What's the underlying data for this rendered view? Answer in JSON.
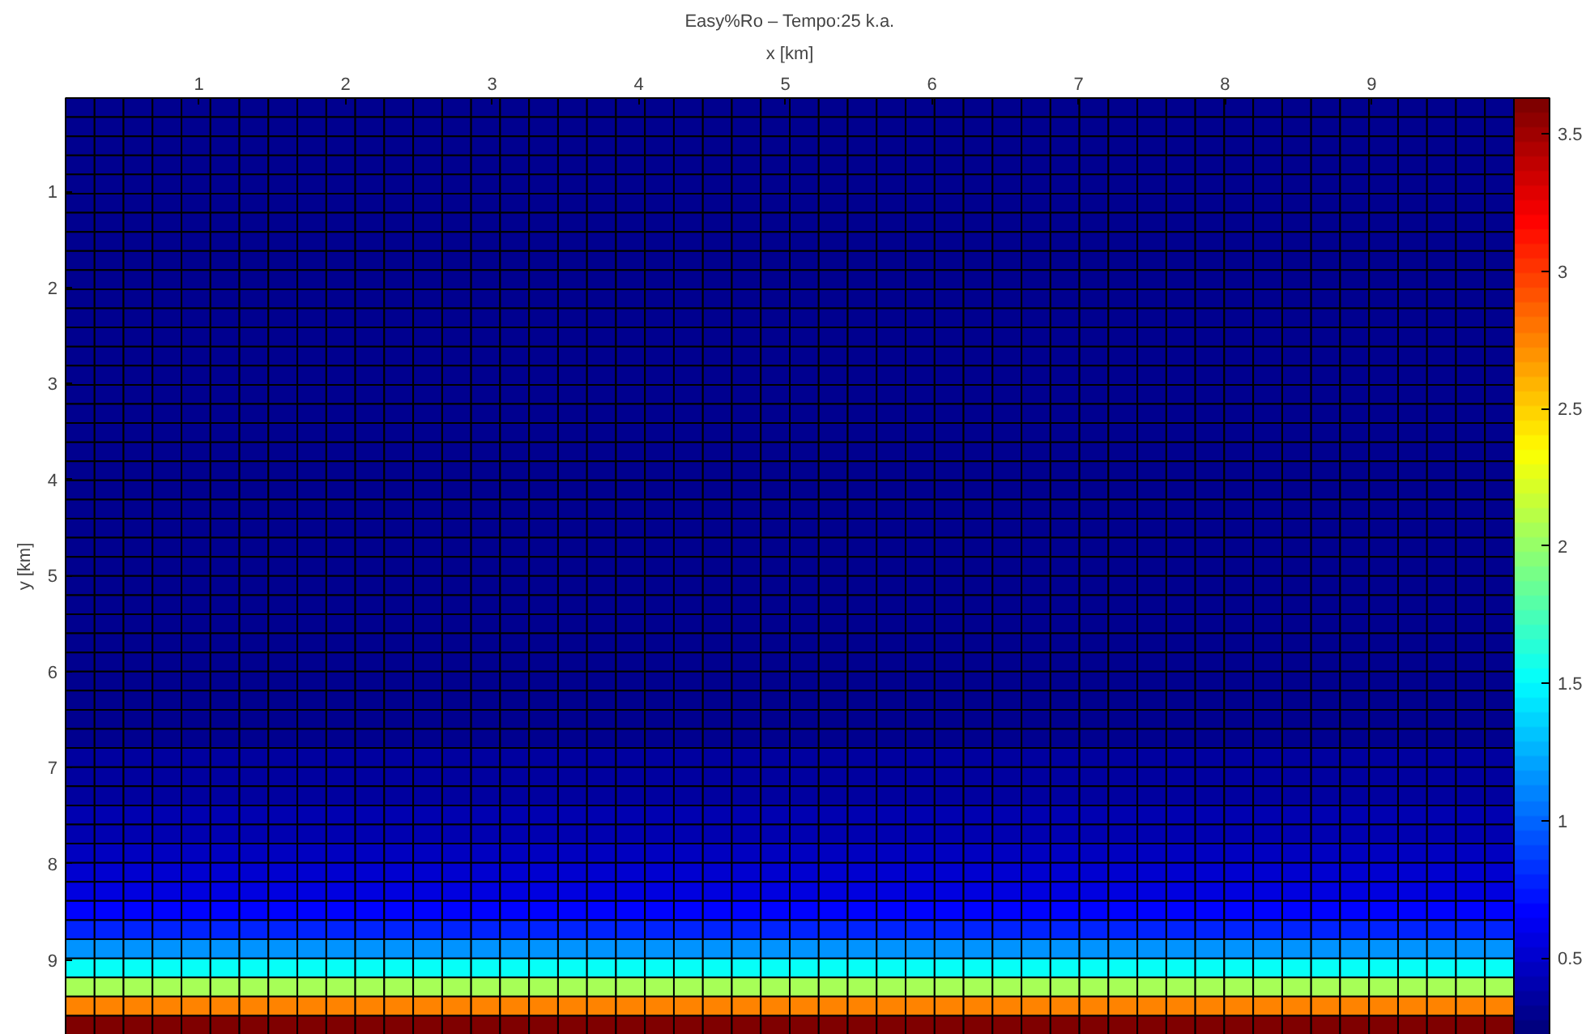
{
  "chart_data": {
    "type": "heatmap",
    "title": "Easy%Ro – Tempo:25 k.a.",
    "xlabel": "x [km]",
    "ylabel": "y [km]",
    "xlim": [
      0.09,
      9.97
    ],
    "ylim": [
      9.78,
      0.03
    ],
    "xticks": [
      1,
      2,
      3,
      4,
      5,
      6,
      7,
      8,
      9
    ],
    "yticks": [
      1,
      2,
      3,
      4,
      5,
      6,
      7,
      8,
      9
    ],
    "clim": [
      0.22,
      3.63
    ],
    "cticks": [
      0.5,
      1,
      1.5,
      2,
      2.5,
      3,
      3.5
    ],
    "cells": [
      [
        0.28,
        0.28,
        0.28,
        0.28,
        0.28,
        0.28,
        0.28,
        0.28,
        0.28,
        0.28,
        0.28,
        0.28,
        0.28,
        0.28,
        0.28,
        0.28,
        0.28,
        0.28,
        0.28,
        0.28,
        0.28,
        0.28,
        0.28,
        0.28,
        0.28,
        0.28,
        0.28,
        0.28,
        0.28,
        0.28,
        0.28,
        0.28,
        0.28,
        0.28,
        0.28,
        0.28,
        0.28,
        0.28,
        0.28,
        0.28,
        0.28,
        0.28,
        0.28,
        0.28,
        0.28,
        0.28,
        0.28,
        0.28,
        0.28,
        0.28
      ],
      [
        0.28,
        0.28,
        0.28,
        0.28,
        0.28,
        0.28,
        0.28,
        0.28,
        0.28,
        0.28,
        0.28,
        0.28,
        0.28,
        0.28,
        0.28,
        0.28,
        0.28,
        0.28,
        0.28,
        0.28,
        0.28,
        0.28,
        0.28,
        0.28,
        0.28,
        0.28,
        0.28,
        0.28,
        0.28,
        0.28,
        0.28,
        0.28,
        0.28,
        0.28,
        0.28,
        0.28,
        0.28,
        0.28,
        0.28,
        0.28,
        0.28,
        0.28,
        0.28,
        0.28,
        0.28,
        0.28,
        0.28,
        0.28,
        0.28,
        0.28
      ],
      [
        0.28,
        0.28,
        0.28,
        0.28,
        0.28,
        0.28,
        0.28,
        0.28,
        0.28,
        0.28,
        0.28,
        0.28,
        0.28,
        0.28,
        0.28,
        0.28,
        0.28,
        0.28,
        0.28,
        0.28,
        0.28,
        0.28,
        0.28,
        0.28,
        0.28,
        0.28,
        0.28,
        0.28,
        0.28,
        0.28,
        0.28,
        0.28,
        0.28,
        0.28,
        0.28,
        0.28,
        0.28,
        0.28,
        0.28,
        0.28,
        0.28,
        0.28,
        0.28,
        0.28,
        0.28,
        0.28,
        0.28,
        0.28,
        0.28,
        0.28
      ],
      [
        0.28,
        0.28,
        0.28,
        0.28,
        0.28,
        0.28,
        0.28,
        0.28,
        0.28,
        0.28,
        0.28,
        0.28,
        0.28,
        0.28,
        0.28,
        0.28,
        0.28,
        0.28,
        0.28,
        0.28,
        0.28,
        0.28,
        0.28,
        0.28,
        0.28,
        0.28,
        0.28,
        0.28,
        0.28,
        0.28,
        0.28,
        0.28,
        0.28,
        0.28,
        0.28,
        0.28,
        0.28,
        0.28,
        0.28,
        0.28,
        0.28,
        0.28,
        0.28,
        0.28,
        0.28,
        0.28,
        0.28,
        0.28,
        0.28,
        0.28
      ],
      [
        0.28,
        0.28,
        0.28,
        0.28,
        0.28,
        0.28,
        0.28,
        0.28,
        0.28,
        0.28,
        0.28,
        0.28,
        0.28,
        0.28,
        0.28,
        0.28,
        0.28,
        0.28,
        0.28,
        0.28,
        0.28,
        0.28,
        0.28,
        0.28,
        0.28,
        0.28,
        0.28,
        0.28,
        0.28,
        0.28,
        0.28,
        0.28,
        0.28,
        0.28,
        0.28,
        0.28,
        0.28,
        0.28,
        0.28,
        0.28,
        0.28,
        0.28,
        0.28,
        0.28,
        0.28,
        0.28,
        0.28,
        0.28,
        0.28,
        0.28
      ],
      [
        0.28,
        0.28,
        0.28,
        0.28,
        0.28,
        0.28,
        0.28,
        0.28,
        0.28,
        0.28,
        0.28,
        0.28,
        0.28,
        0.28,
        0.28,
        0.28,
        0.28,
        0.28,
        0.28,
        0.28,
        0.28,
        0.28,
        0.28,
        0.28,
        0.28,
        0.28,
        0.28,
        0.28,
        0.28,
        0.28,
        0.28,
        0.28,
        0.28,
        0.28,
        0.28,
        0.28,
        0.28,
        0.28,
        0.28,
        0.28,
        0.28,
        0.28,
        0.28,
        0.28,
        0.28,
        0.28,
        0.28,
        0.28,
        0.28,
        0.28
      ],
      [
        0.28,
        0.28,
        0.28,
        0.28,
        0.28,
        0.28,
        0.28,
        0.28,
        0.28,
        0.28,
        0.28,
        0.28,
        0.28,
        0.28,
        0.28,
        0.28,
        0.28,
        0.28,
        0.28,
        0.28,
        0.28,
        0.28,
        0.28,
        0.28,
        0.28,
        0.28,
        0.28,
        0.28,
        0.28,
        0.28,
        0.28,
        0.28,
        0.28,
        0.28,
        0.28,
        0.28,
        0.28,
        0.28,
        0.28,
        0.28,
        0.28,
        0.28,
        0.28,
        0.28,
        0.28,
        0.28,
        0.28,
        0.28,
        0.28,
        0.28
      ],
      [
        0.28,
        0.28,
        0.28,
        0.28,
        0.28,
        0.28,
        0.28,
        0.28,
        0.28,
        0.28,
        0.28,
        0.28,
        0.28,
        0.28,
        0.28,
        0.28,
        0.28,
        0.28,
        0.28,
        0.28,
        0.28,
        0.28,
        0.28,
        0.28,
        0.28,
        0.28,
        0.28,
        0.28,
        0.28,
        0.28,
        0.28,
        0.28,
        0.28,
        0.28,
        0.28,
        0.28,
        0.28,
        0.28,
        0.28,
        0.28,
        0.28,
        0.28,
        0.28,
        0.28,
        0.28,
        0.28,
        0.28,
        0.28,
        0.28,
        0.28
      ],
      [
        0.28,
        0.28,
        0.28,
        0.28,
        0.28,
        0.28,
        0.28,
        0.28,
        0.28,
        0.28,
        0.28,
        0.28,
        0.28,
        0.28,
        0.28,
        0.28,
        0.28,
        0.28,
        0.28,
        0.28,
        0.28,
        0.28,
        0.28,
        0.28,
        0.28,
        0.28,
        0.28,
        0.28,
        0.28,
        0.28,
        0.28,
        0.28,
        0.28,
        0.28,
        0.28,
        0.28,
        0.28,
        0.28,
        0.28,
        0.28,
        0.28,
        0.28,
        0.28,
        0.28,
        0.28,
        0.28,
        0.28,
        0.28,
        0.28,
        0.28
      ],
      [
        0.28,
        0.28,
        0.28,
        0.28,
        0.28,
        0.28,
        0.28,
        0.28,
        0.28,
        0.28,
        0.28,
        0.28,
        0.28,
        0.28,
        0.28,
        0.28,
        0.28,
        0.28,
        0.28,
        0.28,
        0.28,
        0.28,
        0.28,
        0.28,
        0.28,
        0.28,
        0.28,
        0.28,
        0.28,
        0.28,
        0.28,
        0.28,
        0.28,
        0.28,
        0.28,
        0.28,
        0.28,
        0.28,
        0.28,
        0.28,
        0.28,
        0.28,
        0.28,
        0.28,
        0.28,
        0.28,
        0.28,
        0.28,
        0.28,
        0.28
      ],
      [
        0.28,
        0.28,
        0.28,
        0.28,
        0.28,
        0.28,
        0.28,
        0.28,
        0.28,
        0.28,
        0.28,
        0.28,
        0.28,
        0.28,
        0.28,
        0.28,
        0.28,
        0.28,
        0.28,
        0.28,
        0.28,
        0.28,
        0.28,
        0.28,
        0.28,
        0.28,
        0.28,
        0.28,
        0.28,
        0.28,
        0.28,
        0.28,
        0.28,
        0.28,
        0.28,
        0.28,
        0.28,
        0.28,
        0.28,
        0.28,
        0.28,
        0.28,
        0.28,
        0.28,
        0.28,
        0.28,
        0.28,
        0.28,
        0.28,
        0.28
      ],
      [
        0.28,
        0.28,
        0.28,
        0.28,
        0.28,
        0.28,
        0.28,
        0.28,
        0.28,
        0.28,
        0.28,
        0.28,
        0.28,
        0.28,
        0.28,
        0.28,
        0.28,
        0.28,
        0.28,
        0.28,
        0.28,
        0.28,
        0.28,
        0.28,
        0.28,
        0.28,
        0.28,
        0.28,
        0.28,
        0.28,
        0.28,
        0.28,
        0.28,
        0.28,
        0.28,
        0.28,
        0.28,
        0.28,
        0.28,
        0.28,
        0.28,
        0.28,
        0.28,
        0.28,
        0.28,
        0.28,
        0.28,
        0.28,
        0.28,
        0.28
      ],
      [
        0.28,
        0.28,
        0.28,
        0.28,
        0.28,
        0.28,
        0.28,
        0.28,
        0.28,
        0.28,
        0.28,
        0.28,
        0.28,
        0.28,
        0.28,
        0.28,
        0.28,
        0.28,
        0.28,
        0.28,
        0.28,
        0.28,
        0.28,
        0.28,
        0.28,
        0.28,
        0.28,
        0.28,
        0.28,
        0.28,
        0.28,
        0.28,
        0.28,
        0.28,
        0.28,
        0.28,
        0.28,
        0.28,
        0.28,
        0.28,
        0.28,
        0.28,
        0.28,
        0.28,
        0.28,
        0.28,
        0.28,
        0.28,
        0.28,
        0.28
      ],
      [
        0.28,
        0.28,
        0.28,
        0.28,
        0.28,
        0.28,
        0.28,
        0.28,
        0.28,
        0.28,
        0.28,
        0.28,
        0.28,
        0.28,
        0.28,
        0.28,
        0.28,
        0.28,
        0.28,
        0.28,
        0.28,
        0.28,
        0.28,
        0.28,
        0.28,
        0.28,
        0.28,
        0.28,
        0.28,
        0.28,
        0.28,
        0.28,
        0.28,
        0.28,
        0.28,
        0.28,
        0.28,
        0.28,
        0.28,
        0.28,
        0.28,
        0.28,
        0.28,
        0.28,
        0.28,
        0.28,
        0.28,
        0.28,
        0.28,
        0.28
      ],
      [
        0.28,
        0.28,
        0.28,
        0.28,
        0.28,
        0.28,
        0.28,
        0.28,
        0.28,
        0.28,
        0.28,
        0.28,
        0.28,
        0.28,
        0.28,
        0.28,
        0.28,
        0.28,
        0.28,
        0.28,
        0.28,
        0.28,
        0.28,
        0.28,
        0.28,
        0.28,
        0.28,
        0.28,
        0.28,
        0.28,
        0.28,
        0.28,
        0.28,
        0.28,
        0.28,
        0.28,
        0.28,
        0.28,
        0.28,
        0.28,
        0.28,
        0.28,
        0.28,
        0.28,
        0.28,
        0.28,
        0.28,
        0.28,
        0.28,
        0.28
      ],
      [
        0.28,
        0.28,
        0.28,
        0.28,
        0.28,
        0.28,
        0.28,
        0.28,
        0.28,
        0.28,
        0.28,
        0.28,
        0.28,
        0.28,
        0.28,
        0.28,
        0.28,
        0.28,
        0.28,
        0.28,
        0.28,
        0.28,
        0.28,
        0.28,
        0.28,
        0.28,
        0.28,
        0.28,
        0.28,
        0.28,
        0.28,
        0.28,
        0.28,
        0.28,
        0.28,
        0.28,
        0.28,
        0.28,
        0.28,
        0.28,
        0.28,
        0.28,
        0.28,
        0.28,
        0.28,
        0.28,
        0.28,
        0.28,
        0.28,
        0.28
      ],
      [
        0.28,
        0.28,
        0.28,
        0.28,
        0.28,
        0.28,
        0.28,
        0.28,
        0.28,
        0.28,
        0.28,
        0.28,
        0.28,
        0.28,
        0.28,
        0.28,
        0.28,
        0.28,
        0.28,
        0.28,
        0.28,
        0.28,
        0.28,
        0.28,
        0.28,
        0.28,
        0.28,
        0.28,
        0.28,
        0.28,
        0.28,
        0.28,
        0.28,
        0.28,
        0.28,
        0.28,
        0.28,
        0.28,
        0.28,
        0.28,
        0.28,
        0.28,
        0.28,
        0.28,
        0.28,
        0.28,
        0.28,
        0.28,
        0.28,
        0.28
      ],
      [
        0.28,
        0.28,
        0.28,
        0.28,
        0.28,
        0.28,
        0.28,
        0.28,
        0.28,
        0.28,
        0.28,
        0.28,
        0.28,
        0.28,
        0.28,
        0.28,
        0.28,
        0.28,
        0.28,
        0.28,
        0.28,
        0.28,
        0.28,
        0.28,
        0.28,
        0.28,
        0.28,
        0.28,
        0.28,
        0.28,
        0.28,
        0.28,
        0.28,
        0.28,
        0.28,
        0.28,
        0.28,
        0.28,
        0.28,
        0.28,
        0.28,
        0.28,
        0.28,
        0.28,
        0.28,
        0.28,
        0.28,
        0.28,
        0.28,
        0.28
      ],
      [
        0.28,
        0.28,
        0.28,
        0.28,
        0.28,
        0.28,
        0.28,
        0.28,
        0.28,
        0.28,
        0.28,
        0.28,
        0.28,
        0.28,
        0.28,
        0.28,
        0.28,
        0.28,
        0.28,
        0.28,
        0.28,
        0.28,
        0.28,
        0.28,
        0.28,
        0.28,
        0.28,
        0.28,
        0.28,
        0.28,
        0.28,
        0.28,
        0.28,
        0.28,
        0.28,
        0.28,
        0.28,
        0.28,
        0.28,
        0.28,
        0.28,
        0.28,
        0.28,
        0.28,
        0.28,
        0.28,
        0.28,
        0.28,
        0.28,
        0.28
      ],
      [
        0.28,
        0.28,
        0.28,
        0.28,
        0.28,
        0.28,
        0.28,
        0.28,
        0.28,
        0.28,
        0.28,
        0.28,
        0.28,
        0.28,
        0.28,
        0.28,
        0.28,
        0.28,
        0.28,
        0.28,
        0.28,
        0.28,
        0.28,
        0.28,
        0.28,
        0.28,
        0.28,
        0.28,
        0.28,
        0.28,
        0.28,
        0.28,
        0.28,
        0.28,
        0.28,
        0.28,
        0.28,
        0.28,
        0.28,
        0.28,
        0.28,
        0.28,
        0.28,
        0.28,
        0.28,
        0.28,
        0.28,
        0.28,
        0.28,
        0.28
      ],
      [
        0.29,
        0.29,
        0.29,
        0.29,
        0.29,
        0.29,
        0.29,
        0.29,
        0.29,
        0.29,
        0.29,
        0.29,
        0.29,
        0.29,
        0.29,
        0.29,
        0.29,
        0.29,
        0.29,
        0.29,
        0.29,
        0.29,
        0.29,
        0.29,
        0.29,
        0.29,
        0.29,
        0.29,
        0.29,
        0.29,
        0.29,
        0.29,
        0.29,
        0.29,
        0.29,
        0.29,
        0.29,
        0.29,
        0.29,
        0.29,
        0.29,
        0.29,
        0.29,
        0.29,
        0.29,
        0.29,
        0.29,
        0.29,
        0.29,
        0.29
      ],
      [
        0.29,
        0.29,
        0.29,
        0.29,
        0.29,
        0.29,
        0.29,
        0.29,
        0.29,
        0.29,
        0.29,
        0.29,
        0.29,
        0.29,
        0.29,
        0.29,
        0.29,
        0.29,
        0.29,
        0.29,
        0.29,
        0.29,
        0.29,
        0.29,
        0.29,
        0.29,
        0.29,
        0.29,
        0.29,
        0.29,
        0.29,
        0.29,
        0.29,
        0.29,
        0.29,
        0.29,
        0.29,
        0.29,
        0.29,
        0.29,
        0.29,
        0.29,
        0.29,
        0.29,
        0.29,
        0.29,
        0.29,
        0.29,
        0.29,
        0.29
      ],
      [
        0.29,
        0.29,
        0.29,
        0.29,
        0.29,
        0.29,
        0.29,
        0.29,
        0.29,
        0.29,
        0.29,
        0.29,
        0.29,
        0.29,
        0.29,
        0.29,
        0.29,
        0.29,
        0.29,
        0.29,
        0.29,
        0.29,
        0.29,
        0.29,
        0.29,
        0.29,
        0.29,
        0.29,
        0.29,
        0.29,
        0.29,
        0.29,
        0.29,
        0.29,
        0.29,
        0.29,
        0.29,
        0.29,
        0.29,
        0.29,
        0.29,
        0.29,
        0.29,
        0.29,
        0.29,
        0.29,
        0.29,
        0.29,
        0.29,
        0.29
      ],
      [
        0.29,
        0.29,
        0.29,
        0.29,
        0.29,
        0.29,
        0.29,
        0.29,
        0.29,
        0.29,
        0.29,
        0.29,
        0.29,
        0.29,
        0.29,
        0.29,
        0.29,
        0.29,
        0.29,
        0.29,
        0.29,
        0.29,
        0.29,
        0.29,
        0.29,
        0.29,
        0.29,
        0.29,
        0.29,
        0.29,
        0.29,
        0.29,
        0.29,
        0.29,
        0.29,
        0.29,
        0.29,
        0.29,
        0.29,
        0.29,
        0.29,
        0.29,
        0.29,
        0.29,
        0.29,
        0.29,
        0.29,
        0.29,
        0.29,
        0.29
      ],
      [
        0.29,
        0.29,
        0.29,
        0.29,
        0.29,
        0.29,
        0.29,
        0.29,
        0.29,
        0.29,
        0.29,
        0.29,
        0.29,
        0.29,
        0.29,
        0.29,
        0.29,
        0.29,
        0.29,
        0.29,
        0.29,
        0.29,
        0.29,
        0.29,
        0.29,
        0.29,
        0.29,
        0.29,
        0.29,
        0.29,
        0.29,
        0.29,
        0.29,
        0.29,
        0.29,
        0.29,
        0.29,
        0.29,
        0.29,
        0.29,
        0.29,
        0.29,
        0.29,
        0.29,
        0.29,
        0.29,
        0.29,
        0.29,
        0.29,
        0.29
      ],
      [
        0.29,
        0.29,
        0.29,
        0.29,
        0.29,
        0.29,
        0.29,
        0.29,
        0.29,
        0.29,
        0.29,
        0.29,
        0.29,
        0.29,
        0.29,
        0.29,
        0.29,
        0.29,
        0.29,
        0.29,
        0.29,
        0.29,
        0.29,
        0.29,
        0.29,
        0.29,
        0.29,
        0.29,
        0.29,
        0.29,
        0.29,
        0.29,
        0.29,
        0.29,
        0.29,
        0.29,
        0.29,
        0.29,
        0.29,
        0.29,
        0.29,
        0.29,
        0.29,
        0.29,
        0.29,
        0.29,
        0.29,
        0.29,
        0.29,
        0.29
      ],
      [
        0.29,
        0.29,
        0.29,
        0.29,
        0.29,
        0.29,
        0.29,
        0.29,
        0.29,
        0.29,
        0.29,
        0.29,
        0.29,
        0.29,
        0.29,
        0.29,
        0.29,
        0.29,
        0.29,
        0.29,
        0.29,
        0.29,
        0.29,
        0.29,
        0.29,
        0.29,
        0.29,
        0.29,
        0.29,
        0.29,
        0.29,
        0.29,
        0.29,
        0.29,
        0.29,
        0.29,
        0.29,
        0.29,
        0.29,
        0.29,
        0.29,
        0.29,
        0.29,
        0.29,
        0.29,
        0.29,
        0.29,
        0.29,
        0.29,
        0.29
      ],
      [
        0.29,
        0.29,
        0.29,
        0.29,
        0.29,
        0.29,
        0.29,
        0.29,
        0.29,
        0.29,
        0.29,
        0.29,
        0.29,
        0.29,
        0.29,
        0.29,
        0.29,
        0.29,
        0.29,
        0.29,
        0.29,
        0.29,
        0.29,
        0.29,
        0.29,
        0.29,
        0.29,
        0.29,
        0.29,
        0.29,
        0.29,
        0.29,
        0.29,
        0.29,
        0.29,
        0.29,
        0.29,
        0.29,
        0.29,
        0.29,
        0.29,
        0.29,
        0.29,
        0.29,
        0.29,
        0.29,
        0.29,
        0.29,
        0.29,
        0.29
      ],
      [
        0.3,
        0.3,
        0.3,
        0.3,
        0.3,
        0.3,
        0.3,
        0.3,
        0.3,
        0.3,
        0.3,
        0.3,
        0.3,
        0.3,
        0.3,
        0.3,
        0.3,
        0.3,
        0.3,
        0.3,
        0.3,
        0.3,
        0.3,
        0.3,
        0.3,
        0.3,
        0.3,
        0.3,
        0.3,
        0.3,
        0.3,
        0.3,
        0.3,
        0.3,
        0.3,
        0.3,
        0.3,
        0.3,
        0.3,
        0.3,
        0.3,
        0.3,
        0.3,
        0.3,
        0.3,
        0.3,
        0.3,
        0.3,
        0.3,
        0.3
      ],
      [
        0.3,
        0.3,
        0.3,
        0.3,
        0.3,
        0.3,
        0.3,
        0.3,
        0.3,
        0.3,
        0.3,
        0.3,
        0.3,
        0.3,
        0.3,
        0.3,
        0.3,
        0.3,
        0.3,
        0.3,
        0.3,
        0.3,
        0.3,
        0.3,
        0.3,
        0.3,
        0.3,
        0.3,
        0.3,
        0.3,
        0.3,
        0.3,
        0.3,
        0.3,
        0.3,
        0.3,
        0.3,
        0.3,
        0.3,
        0.3,
        0.3,
        0.3,
        0.3,
        0.3,
        0.3,
        0.3,
        0.3,
        0.3,
        0.3,
        0.3
      ],
      [
        0.3,
        0.3,
        0.3,
        0.3,
        0.3,
        0.3,
        0.3,
        0.3,
        0.3,
        0.3,
        0.3,
        0.3,
        0.3,
        0.3,
        0.3,
        0.3,
        0.3,
        0.3,
        0.3,
        0.3,
        0.3,
        0.3,
        0.3,
        0.3,
        0.3,
        0.3,
        0.3,
        0.3,
        0.3,
        0.3,
        0.3,
        0.3,
        0.3,
        0.3,
        0.3,
        0.3,
        0.3,
        0.3,
        0.3,
        0.3,
        0.3,
        0.3,
        0.3,
        0.3,
        0.3,
        0.3,
        0.3,
        0.3,
        0.3,
        0.3
      ],
      [
        0.3,
        0.3,
        0.3,
        0.3,
        0.3,
        0.3,
        0.3,
        0.3,
        0.3,
        0.3,
        0.3,
        0.3,
        0.3,
        0.3,
        0.3,
        0.3,
        0.3,
        0.3,
        0.3,
        0.3,
        0.3,
        0.3,
        0.3,
        0.3,
        0.3,
        0.3,
        0.3,
        0.3,
        0.3,
        0.3,
        0.3,
        0.3,
        0.3,
        0.3,
        0.3,
        0.3,
        0.3,
        0.3,
        0.3,
        0.3,
        0.3,
        0.3,
        0.3,
        0.3,
        0.3,
        0.3,
        0.3,
        0.3,
        0.3,
        0.3
      ],
      [
        0.31,
        0.31,
        0.31,
        0.31,
        0.31,
        0.31,
        0.31,
        0.31,
        0.31,
        0.31,
        0.31,
        0.31,
        0.31,
        0.31,
        0.31,
        0.31,
        0.31,
        0.31,
        0.31,
        0.31,
        0.31,
        0.31,
        0.31,
        0.31,
        0.31,
        0.31,
        0.31,
        0.31,
        0.31,
        0.31,
        0.31,
        0.31,
        0.31,
        0.31,
        0.31,
        0.31,
        0.31,
        0.31,
        0.31,
        0.31,
        0.31,
        0.31,
        0.31,
        0.31,
        0.31,
        0.31,
        0.31,
        0.31,
        0.31,
        0.31
      ],
      [
        0.32,
        0.32,
        0.32,
        0.32,
        0.32,
        0.32,
        0.32,
        0.32,
        0.32,
        0.32,
        0.32,
        0.32,
        0.32,
        0.32,
        0.32,
        0.32,
        0.32,
        0.32,
        0.32,
        0.32,
        0.32,
        0.32,
        0.32,
        0.32,
        0.32,
        0.32,
        0.32,
        0.32,
        0.32,
        0.32,
        0.32,
        0.32,
        0.32,
        0.32,
        0.32,
        0.32,
        0.32,
        0.32,
        0.32,
        0.32,
        0.32,
        0.32,
        0.32,
        0.32,
        0.32,
        0.32,
        0.32,
        0.32,
        0.32,
        0.32
      ],
      [
        0.33,
        0.33,
        0.33,
        0.33,
        0.33,
        0.33,
        0.33,
        0.33,
        0.33,
        0.33,
        0.33,
        0.33,
        0.33,
        0.33,
        0.33,
        0.33,
        0.33,
        0.33,
        0.33,
        0.33,
        0.33,
        0.33,
        0.33,
        0.33,
        0.33,
        0.33,
        0.33,
        0.33,
        0.33,
        0.33,
        0.33,
        0.33,
        0.33,
        0.33,
        0.33,
        0.33,
        0.33,
        0.33,
        0.33,
        0.33,
        0.33,
        0.33,
        0.33,
        0.33,
        0.33,
        0.33,
        0.33,
        0.33,
        0.33,
        0.33
      ],
      [
        0.35,
        0.35,
        0.35,
        0.35,
        0.35,
        0.35,
        0.35,
        0.35,
        0.35,
        0.35,
        0.35,
        0.35,
        0.35,
        0.35,
        0.35,
        0.35,
        0.35,
        0.35,
        0.35,
        0.35,
        0.35,
        0.35,
        0.35,
        0.35,
        0.35,
        0.35,
        0.35,
        0.35,
        0.35,
        0.35,
        0.35,
        0.35,
        0.35,
        0.35,
        0.35,
        0.35,
        0.35,
        0.35,
        0.35,
        0.35,
        0.35,
        0.35,
        0.35,
        0.35,
        0.35,
        0.35,
        0.35,
        0.35,
        0.35,
        0.35
      ],
      [
        0.37,
        0.37,
        0.37,
        0.37,
        0.37,
        0.37,
        0.37,
        0.37,
        0.37,
        0.37,
        0.37,
        0.37,
        0.37,
        0.37,
        0.37,
        0.37,
        0.37,
        0.37,
        0.37,
        0.37,
        0.37,
        0.37,
        0.37,
        0.37,
        0.37,
        0.37,
        0.37,
        0.37,
        0.37,
        0.37,
        0.37,
        0.37,
        0.37,
        0.37,
        0.37,
        0.37,
        0.37,
        0.37,
        0.37,
        0.37,
        0.37,
        0.37,
        0.37,
        0.37,
        0.37,
        0.37,
        0.37,
        0.37,
        0.37,
        0.37
      ],
      [
        0.4,
        0.4,
        0.4,
        0.4,
        0.4,
        0.4,
        0.4,
        0.4,
        0.4,
        0.4,
        0.4,
        0.4,
        0.4,
        0.4,
        0.4,
        0.4,
        0.4,
        0.4,
        0.4,
        0.4,
        0.4,
        0.4,
        0.4,
        0.4,
        0.4,
        0.4,
        0.4,
        0.4,
        0.4,
        0.4,
        0.4,
        0.4,
        0.4,
        0.4,
        0.4,
        0.4,
        0.4,
        0.4,
        0.4,
        0.4,
        0.4,
        0.4,
        0.4,
        0.4,
        0.4,
        0.4,
        0.4,
        0.4,
        0.4,
        0.4
      ],
      [
        0.43,
        0.43,
        0.43,
        0.43,
        0.43,
        0.43,
        0.43,
        0.43,
        0.43,
        0.43,
        0.43,
        0.43,
        0.43,
        0.43,
        0.43,
        0.43,
        0.43,
        0.43,
        0.43,
        0.43,
        0.43,
        0.43,
        0.43,
        0.43,
        0.43,
        0.43,
        0.43,
        0.43,
        0.43,
        0.43,
        0.43,
        0.43,
        0.43,
        0.43,
        0.43,
        0.43,
        0.43,
        0.43,
        0.43,
        0.43,
        0.43,
        0.43,
        0.43,
        0.43,
        0.43,
        0.43,
        0.43,
        0.43,
        0.43,
        0.43
      ],
      [
        0.46,
        0.46,
        0.46,
        0.46,
        0.46,
        0.46,
        0.46,
        0.46,
        0.46,
        0.46,
        0.46,
        0.46,
        0.46,
        0.46,
        0.46,
        0.46,
        0.46,
        0.46,
        0.46,
        0.46,
        0.46,
        0.46,
        0.46,
        0.46,
        0.46,
        0.46,
        0.46,
        0.46,
        0.46,
        0.46,
        0.46,
        0.46,
        0.46,
        0.46,
        0.46,
        0.46,
        0.46,
        0.46,
        0.46,
        0.46,
        0.46,
        0.46,
        0.46,
        0.46,
        0.46,
        0.46,
        0.46,
        0.46,
        0.46,
        0.46
      ],
      [
        0.5,
        0.5,
        0.5,
        0.5,
        0.5,
        0.5,
        0.5,
        0.5,
        0.5,
        0.5,
        0.5,
        0.5,
        0.5,
        0.5,
        0.5,
        0.5,
        0.5,
        0.5,
        0.5,
        0.5,
        0.5,
        0.5,
        0.5,
        0.5,
        0.5,
        0.5,
        0.5,
        0.5,
        0.5,
        0.5,
        0.5,
        0.5,
        0.5,
        0.5,
        0.5,
        0.5,
        0.5,
        0.5,
        0.5,
        0.5,
        0.5,
        0.5,
        0.5,
        0.5,
        0.5,
        0.5,
        0.5,
        0.5,
        0.5,
        0.5
      ],
      [
        0.58,
        0.58,
        0.58,
        0.58,
        0.58,
        0.58,
        0.58,
        0.58,
        0.58,
        0.58,
        0.58,
        0.58,
        0.58,
        0.58,
        0.58,
        0.58,
        0.58,
        0.58,
        0.58,
        0.58,
        0.58,
        0.58,
        0.58,
        0.58,
        0.58,
        0.58,
        0.58,
        0.58,
        0.58,
        0.58,
        0.58,
        0.58,
        0.58,
        0.58,
        0.58,
        0.58,
        0.58,
        0.58,
        0.58,
        0.58,
        0.58,
        0.58,
        0.58,
        0.58,
        0.58,
        0.58,
        0.58,
        0.58,
        0.58,
        0.58
      ],
      [
        0.68,
        0.68,
        0.68,
        0.68,
        0.68,
        0.68,
        0.68,
        0.68,
        0.68,
        0.68,
        0.68,
        0.68,
        0.68,
        0.68,
        0.68,
        0.68,
        0.68,
        0.68,
        0.68,
        0.68,
        0.68,
        0.68,
        0.68,
        0.68,
        0.68,
        0.68,
        0.68,
        0.68,
        0.68,
        0.68,
        0.68,
        0.68,
        0.68,
        0.68,
        0.68,
        0.68,
        0.68,
        0.68,
        0.68,
        0.68,
        0.68,
        0.68,
        0.68,
        0.68,
        0.68,
        0.68,
        0.68,
        0.68,
        0.68,
        0.68
      ],
      [
        0.8,
        0.8,
        0.8,
        0.8,
        0.8,
        0.8,
        0.8,
        0.8,
        0.8,
        0.8,
        0.8,
        0.8,
        0.8,
        0.8,
        0.8,
        0.8,
        0.8,
        0.8,
        0.8,
        0.8,
        0.8,
        0.8,
        0.8,
        0.8,
        0.8,
        0.8,
        0.8,
        0.8,
        0.8,
        0.8,
        0.8,
        0.8,
        0.8,
        0.8,
        0.8,
        0.8,
        0.8,
        0.8,
        0.8,
        0.8,
        0.8,
        0.8,
        0.8,
        0.8,
        0.8,
        0.8,
        0.8,
        0.8,
        0.8,
        0.8
      ],
      [
        1.15,
        1.15,
        1.15,
        1.15,
        1.15,
        1.15,
        1.15,
        1.15,
        1.15,
        1.15,
        1.15,
        1.15,
        1.15,
        1.15,
        1.15,
        1.15,
        1.15,
        1.15,
        1.15,
        1.15,
        1.15,
        1.15,
        1.15,
        1.15,
        1.15,
        1.15,
        1.15,
        1.15,
        1.15,
        1.15,
        1.15,
        1.15,
        1.15,
        1.15,
        1.15,
        1.15,
        1.15,
        1.15,
        1.15,
        1.15,
        1.15,
        1.15,
        1.15,
        1.15,
        1.15,
        1.15,
        1.15,
        1.15,
        1.15,
        1.15
      ],
      [
        1.5,
        1.5,
        1.5,
        1.5,
        1.5,
        1.5,
        1.5,
        1.5,
        1.5,
        1.5,
        1.5,
        1.5,
        1.5,
        1.5,
        1.5,
        1.5,
        1.5,
        1.5,
        1.5,
        1.5,
        1.5,
        1.5,
        1.5,
        1.5,
        1.5,
        1.5,
        1.5,
        1.5,
        1.5,
        1.5,
        1.5,
        1.5,
        1.5,
        1.5,
        1.5,
        1.5,
        1.5,
        1.5,
        1.5,
        1.5,
        1.5,
        1.5,
        1.5,
        1.5,
        1.5,
        1.5,
        1.5,
        1.5,
        1.5,
        1.5
      ],
      [
        2.05,
        2.05,
        2.05,
        2.05,
        2.05,
        2.05,
        2.05,
        2.05,
        2.05,
        2.05,
        2.05,
        2.05,
        2.05,
        2.05,
        2.05,
        2.05,
        2.05,
        2.05,
        2.05,
        2.05,
        2.05,
        2.05,
        2.05,
        2.05,
        2.05,
        2.05,
        2.05,
        2.05,
        2.05,
        2.05,
        2.05,
        2.05,
        2.05,
        2.05,
        2.05,
        2.05,
        2.05,
        2.05,
        2.05,
        2.05,
        2.05,
        2.05,
        2.05,
        2.05,
        2.05,
        2.05,
        2.05,
        2.05,
        2.05,
        2.05
      ],
      [
        2.75,
        2.75,
        2.75,
        2.75,
        2.75,
        2.75,
        2.75,
        2.75,
        2.75,
        2.75,
        2.75,
        2.75,
        2.75,
        2.75,
        2.75,
        2.75,
        2.75,
        2.75,
        2.75,
        2.75,
        2.75,
        2.75,
        2.75,
        2.75,
        2.75,
        2.75,
        2.75,
        2.75,
        2.75,
        2.75,
        2.75,
        2.75,
        2.75,
        2.75,
        2.75,
        2.75,
        2.75,
        2.75,
        2.75,
        2.75,
        2.75,
        2.75,
        2.75,
        2.75,
        2.75,
        2.75,
        2.75,
        2.75,
        2.75,
        2.75
      ],
      [
        3.6,
        3.6,
        3.6,
        3.6,
        3.6,
        3.6,
        3.6,
        3.6,
        3.6,
        3.6,
        3.6,
        3.6,
        3.6,
        3.6,
        3.6,
        3.6,
        3.6,
        3.6,
        3.6,
        3.6,
        3.6,
        3.6,
        3.6,
        3.6,
        3.6,
        3.6,
        3.6,
        3.6,
        3.6,
        3.6,
        3.6,
        3.6,
        3.6,
        3.6,
        3.6,
        3.6,
        3.6,
        3.6,
        3.6,
        3.6,
        3.6,
        3.6,
        3.6,
        3.6,
        3.6,
        3.6,
        3.6,
        3.6,
        3.6,
        3.6
      ]
    ]
  }
}
